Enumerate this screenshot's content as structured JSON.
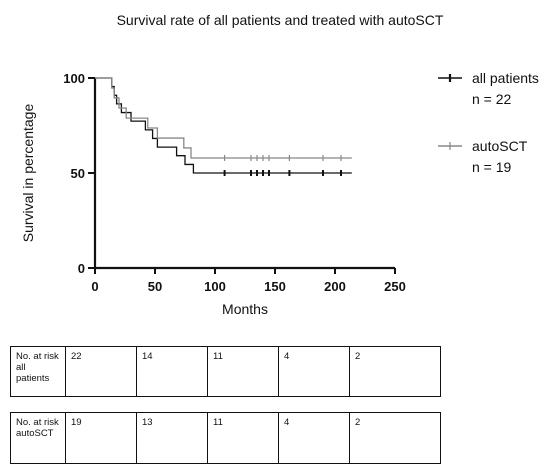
{
  "chart_data": {
    "type": "line",
    "step": true,
    "title": "Survival rate of all patients and treated with autoSCT",
    "xlabel": "Months",
    "ylabel": "Survival in percentage",
    "xlim": [
      0,
      250
    ],
    "ylim": [
      0,
      100
    ],
    "xticks": [
      "0",
      "50",
      "100",
      "150",
      "200",
      "250"
    ],
    "yticks": [
      "0",
      "50",
      "100"
    ],
    "grid": false,
    "legend_position": "right",
    "series": [
      {
        "name": "all patients",
        "legend_note": "n = 22",
        "color": "#111111",
        "steps": [
          [
            0,
            100
          ],
          [
            14,
            100
          ],
          [
            14,
            95.5
          ],
          [
            16,
            95.5
          ],
          [
            16,
            90.9
          ],
          [
            18,
            90.9
          ],
          [
            18,
            86.4
          ],
          [
            22,
            86.4
          ],
          [
            22,
            81.8
          ],
          [
            30,
            81.8
          ],
          [
            30,
            77.3
          ],
          [
            42,
            77.3
          ],
          [
            42,
            72.7
          ],
          [
            48,
            72.7
          ],
          [
            48,
            68.2
          ],
          [
            52,
            68.2
          ],
          [
            52,
            63.6
          ],
          [
            68,
            63.6
          ],
          [
            68,
            59.1
          ],
          [
            75,
            59.1
          ],
          [
            75,
            54.5
          ],
          [
            82,
            54.5
          ],
          [
            82,
            50
          ],
          [
            214,
            50
          ]
        ],
        "censored_x": [
          108,
          130,
          135,
          140,
          145,
          162,
          190,
          205
        ]
      },
      {
        "name": "autoSCT",
        "legend_note": "n = 19",
        "color": "#888888",
        "steps": [
          [
            0,
            100
          ],
          [
            14,
            100
          ],
          [
            14,
            94.7
          ],
          [
            16,
            94.7
          ],
          [
            16,
            89.5
          ],
          [
            20,
            89.5
          ],
          [
            20,
            84.2
          ],
          [
            26,
            84.2
          ],
          [
            26,
            78.9
          ],
          [
            44,
            78.9
          ],
          [
            44,
            73.7
          ],
          [
            52,
            73.7
          ],
          [
            52,
            68.4
          ],
          [
            74,
            68.4
          ],
          [
            74,
            63.2
          ],
          [
            80,
            63.2
          ],
          [
            80,
            57.9
          ],
          [
            214,
            57.9
          ]
        ],
        "censored_x": [
          108,
          130,
          135,
          140,
          145,
          162,
          190,
          205
        ]
      }
    ]
  },
  "risk_tables": [
    {
      "label": "No. at risk all patients",
      "values": [
        "22",
        "14",
        "11",
        "4",
        "2"
      ]
    },
    {
      "label": "No. at risk autoSCT",
      "values": [
        "19",
        "13",
        "11",
        "4",
        "2"
      ]
    }
  ]
}
